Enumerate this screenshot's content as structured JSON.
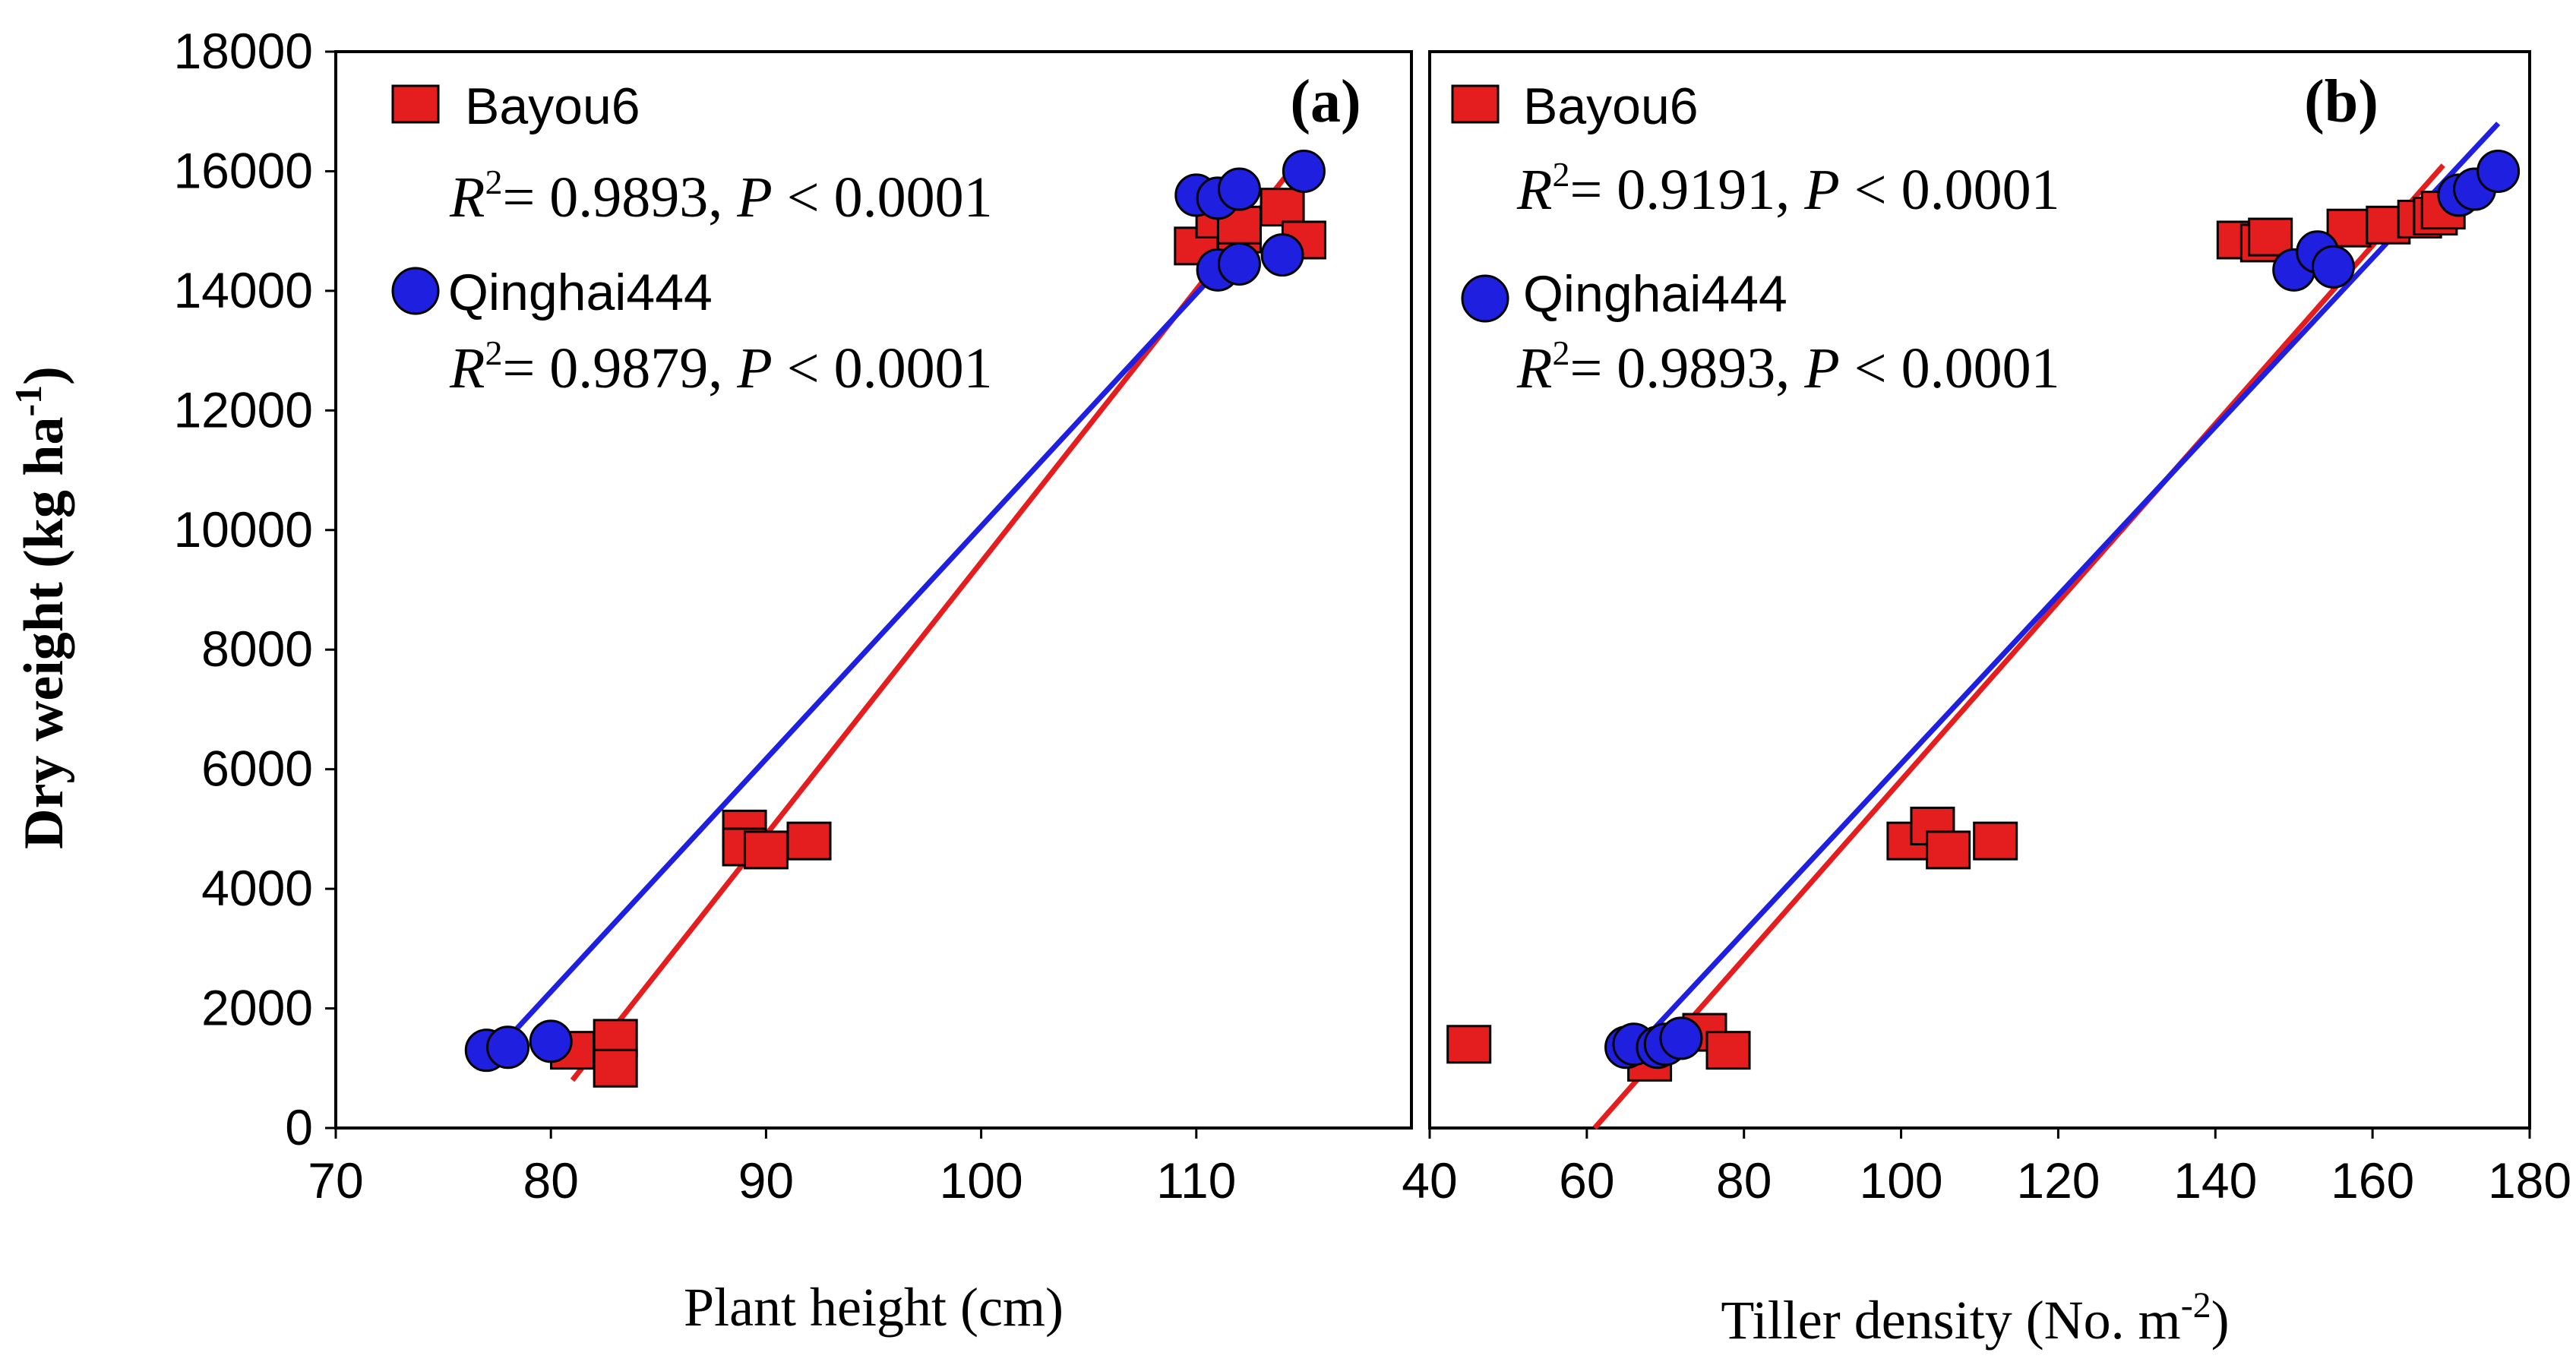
{
  "chart_data": [
    {
      "type": "scatter",
      "panel_label": "(a)",
      "xlabel": "Plant height (cm)",
      "ylabel": "Dry weight (kg ha",
      "ylabel_sup": "-1",
      "ylabel_close": ")",
      "xlim": [
        70,
        120
      ],
      "ylim": [
        0,
        18000
      ],
      "xticks": [
        70,
        80,
        90,
        100,
        110
      ],
      "yticks": [
        0,
        2000,
        4000,
        6000,
        8000,
        10000,
        12000,
        14000,
        16000,
        18000
      ],
      "series": [
        {
          "name": "Bayou6",
          "marker": "square",
          "color": "#e41e1e",
          "stats": {
            "r2_prefix": "R",
            "r2_sup": "2",
            "r2_value": "= 0.9893,",
            "p_label": "P",
            "p_value": "< 0.0001"
          },
          "points": [
            [
              81,
              1300
            ],
            [
              83,
              1500
            ],
            [
              83,
              1000
            ],
            [
              89,
              5000
            ],
            [
              89,
              4700
            ],
            [
              90,
              4650
            ],
            [
              92,
              4800
            ],
            [
              110,
              14750
            ],
            [
              111,
              15200
            ],
            [
              112,
              14950
            ],
            [
              112,
              15100
            ],
            [
              114,
              15400
            ],
            [
              115,
              14850
            ]
          ],
          "fit": {
            "x": [
              81,
              115
            ],
            "y": [
              800,
              16300
            ]
          }
        },
        {
          "name": "Qinghai444",
          "marker": "circle",
          "color": "#1f1fe0",
          "stats": {
            "r2_prefix": "R",
            "r2_sup": "2",
            "r2_value": "= 0.9879,",
            "p_label": "P",
            "p_value": "< 0.0001"
          },
          "points": [
            [
              77,
              1300
            ],
            [
              78,
              1350
            ],
            [
              80,
              1450
            ],
            [
              110,
              15600
            ],
            [
              111,
              15550
            ],
            [
              111,
              14350
            ],
            [
              112,
              15700
            ],
            [
              112,
              14450
            ],
            [
              114,
              14600
            ],
            [
              115,
              16000
            ]
          ],
          "fit": {
            "x": [
              78,
              115
            ],
            "y": [
              1500,
              15900
            ]
          }
        }
      ]
    },
    {
      "type": "scatter",
      "panel_label": "(b)",
      "xlabel": "Tiller density (No. m",
      "xlabel_sup": "-2",
      "xlabel_close": ")",
      "xlim": [
        40,
        180
      ],
      "ylim": [
        0,
        18000
      ],
      "xticks": [
        40,
        60,
        80,
        100,
        120,
        140,
        160,
        180
      ],
      "series": [
        {
          "name": "Bayou6",
          "marker": "square",
          "color": "#e41e1e",
          "stats": {
            "r2_prefix": "R",
            "r2_sup": "2",
            "r2_value": "= 0.9191,",
            "p_label": "P",
            "p_value": "< 0.0001"
          },
          "points": [
            [
              45,
              1400
            ],
            [
              68,
              1100
            ],
            [
              75,
              1600
            ],
            [
              78,
              1300
            ],
            [
              101,
              4800
            ],
            [
              104,
              5050
            ],
            [
              106,
              4650
            ],
            [
              112,
              4800
            ],
            [
              143,
              14850
            ],
            [
              146,
              14800
            ],
            [
              147,
              14900
            ],
            [
              157,
              15050
            ],
            [
              162,
              15100
            ],
            [
              166,
              15200
            ],
            [
              168,
              15250
            ],
            [
              169,
              15350
            ]
          ],
          "fit": {
            "x": [
              61,
              169
            ],
            "y": [
              0,
              16100
            ]
          }
        },
        {
          "name": "Qinghai444",
          "marker": "circle",
          "color": "#1f1fe0",
          "stats": {
            "r2_prefix": "R",
            "r2_sup": "2",
            "r2_value": "= 0.9893,",
            "p_label": "P",
            "p_value": "< 0.0001"
          },
          "points": [
            [
              65,
              1350
            ],
            [
              66,
              1400
            ],
            [
              69,
              1350
            ],
            [
              70,
              1400
            ],
            [
              72,
              1500
            ],
            [
              150,
              14350
            ],
            [
              153,
              14650
            ],
            [
              155,
              14400
            ],
            [
              171,
              15600
            ],
            [
              173,
              15700
            ],
            [
              176,
              16000
            ]
          ],
          "fit": {
            "x": [
              66,
              176
            ],
            "y": [
              1300,
              16800
            ]
          }
        }
      ]
    }
  ]
}
